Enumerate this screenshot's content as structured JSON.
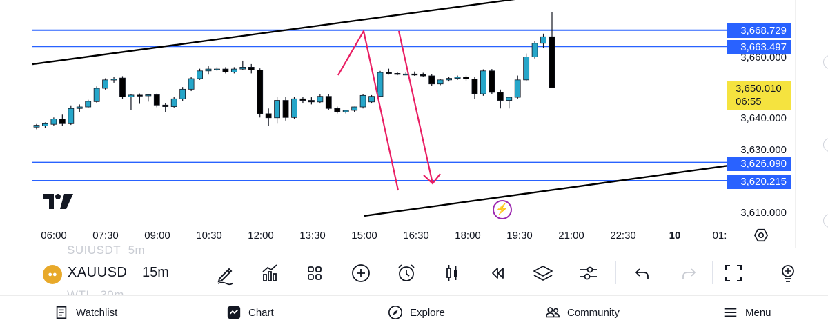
{
  "chart": {
    "symbol": "XAUUSD",
    "interval": "15m",
    "ghost_symbol_above": "SUIUSDT",
    "ghost_interval_above": "5m",
    "ghost_symbol_below": "WTI",
    "ghost_interval_below": "30m",
    "price_axis": {
      "labels": [
        "3,660.000",
        "3,640.000",
        "3,630.000",
        "3,610.000"
      ],
      "horizontal_lines": [
        {
          "price": "3,668.729"
        },
        {
          "price": "3,663.497"
        },
        {
          "price": "3,626.090"
        },
        {
          "price": "3,620.215"
        }
      ],
      "last_price": "3,650.010",
      "countdown": "06:55"
    },
    "time_axis": [
      "06:00",
      "07:30",
      "09:00",
      "10:30",
      "12:00",
      "13:30",
      "15:00",
      "16:30",
      "18:00",
      "19:30",
      "21:00",
      "22:30",
      "10",
      "01:"
    ],
    "colors": {
      "up_candle": "#26a6c9",
      "down_candle": "#000000",
      "hline": "#2962ff",
      "trendline": "#000000",
      "arrow": "#e91e63",
      "last_price_bg": "#f5e33f",
      "bolt": "#9c27b0"
    }
  },
  "chart_data": {
    "type": "candlestick",
    "interval": "15m",
    "symbol": "XAUUSD",
    "y_axis_labels": [
      3660,
      3640,
      3630,
      3610
    ],
    "candles": [
      [
        3637.5,
        3638.5,
        3636.8,
        3638.1
      ],
      [
        3637.9,
        3639.0,
        3637.2,
        3638.6
      ],
      [
        3638.4,
        3640.6,
        3637.8,
        3640.1
      ],
      [
        3640.1,
        3641.5,
        3638.0,
        3638.6
      ],
      [
        3638.6,
        3644.5,
        3638.2,
        3643.5
      ],
      [
        3643.5,
        3644.8,
        3642.4,
        3644.0
      ],
      [
        3644.0,
        3646.3,
        3643.6,
        3645.8
      ],
      [
        3645.7,
        3650.6,
        3645.3,
        3650.0
      ],
      [
        3650.0,
        3653.2,
        3649.6,
        3652.7
      ],
      [
        3652.7,
        3653.6,
        3651.8,
        3653.0
      ],
      [
        3653.3,
        3653.9,
        3646.6,
        3647.2
      ],
      [
        3647.2,
        3648.1,
        3643.0,
        3647.8
      ],
      [
        3647.8,
        3648.3,
        3645.0,
        3647.6
      ],
      [
        3647.6,
        3648.1,
        3645.7,
        3647.9
      ],
      [
        3647.9,
        3648.3,
        3643.9,
        3644.6
      ],
      [
        3644.6,
        3645.2,
        3642.3,
        3644.1
      ],
      [
        3644.1,
        3647.2,
        3643.8,
        3646.6
      ],
      [
        3646.6,
        3650.4,
        3646.0,
        3649.7
      ],
      [
        3649.7,
        3653.6,
        3649.1,
        3653.1
      ],
      [
        3653.1,
        3656.3,
        3652.7,
        3655.6
      ],
      [
        3655.6,
        3657.1,
        3654.4,
        3656.2
      ],
      [
        3656.2,
        3656.8,
        3655.6,
        3656.2
      ],
      [
        3656.2,
        3656.8,
        3654.8,
        3655.2
      ],
      [
        3655.2,
        3656.8,
        3654.8,
        3656.2
      ],
      [
        3656.2,
        3658.9,
        3655.9,
        3656.8
      ],
      [
        3656.8,
        3657.8,
        3654.8,
        3655.9
      ],
      [
        3655.9,
        3656.4,
        3640.6,
        3641.8
      ],
      [
        3641.8,
        3643.5,
        3638.0,
        3640.5
      ],
      [
        3640.5,
        3647.2,
        3638.6,
        3646.1
      ],
      [
        3646.1,
        3647.3,
        3639.6,
        3640.6
      ],
      [
        3640.6,
        3647.3,
        3640.2,
        3646.6
      ],
      [
        3646.6,
        3647.3,
        3645.1,
        3646.1
      ],
      [
        3646.1,
        3647.1,
        3644.8,
        3645.6
      ],
      [
        3645.6,
        3648.1,
        3645.1,
        3647.4
      ],
      [
        3647.4,
        3648.1,
        3643.0,
        3643.5
      ],
      [
        3643.5,
        3644.1,
        3641.9,
        3642.4
      ],
      [
        3642.4,
        3643.0,
        3641.9,
        3642.9
      ],
      [
        3642.9,
        3644.1,
        3642.4,
        3644.0
      ],
      [
        3644.0,
        3648.1,
        3643.5,
        3647.7
      ],
      [
        3645.6,
        3647.8,
        3645.1,
        3647.4
      ],
      [
        3647.4,
        3655.6,
        3647.1,
        3655.1
      ],
      [
        3655.1,
        3656.3,
        3654.4,
        3654.8
      ],
      [
        3654.8,
        3655.2,
        3654.2,
        3654.6
      ],
      [
        3654.6,
        3655.2,
        3654.2,
        3654.6
      ],
      [
        3654.6,
        3655.4,
        3654.0,
        3654.4
      ],
      [
        3654.4,
        3655.0,
        3653.6,
        3654.0
      ],
      [
        3654.0,
        3654.6,
        3650.8,
        3651.4
      ],
      [
        3651.4,
        3653.0,
        3651.0,
        3652.7
      ],
      [
        3652.7,
        3653.6,
        3652.2,
        3653.2
      ],
      [
        3653.2,
        3654.1,
        3652.7,
        3653.6
      ],
      [
        3653.6,
        3654.1,
        3652.5,
        3653.0
      ],
      [
        3653.0,
        3653.6,
        3646.6,
        3648.2
      ],
      [
        3648.2,
        3656.1,
        3647.6,
        3655.6
      ],
      [
        3655.6,
        3656.2,
        3648.2,
        3648.7
      ],
      [
        3648.7,
        3649.6,
        3643.5,
        3646.1
      ],
      [
        3646.1,
        3647.2,
        3643.5,
        3647.1
      ],
      [
        3647.1,
        3654.1,
        3646.6,
        3652.7
      ],
      [
        3652.7,
        3661.2,
        3652.2,
        3660.1
      ],
      [
        3660.1,
        3665.3,
        3659.6,
        3664.5
      ],
      [
        3664.5,
        3667.6,
        3663.0,
        3666.6
      ],
      [
        3666.6,
        3674.6,
        3650.2,
        3650.2
      ]
    ],
    "horizontal_levels": [
      3668.729,
      3663.497,
      3626.09,
      3620.215
    ],
    "trendlines": [
      {
        "from": [
          "06:00",
          3658.7
        ],
        "to": [
          "19:30",
          3678.9
        ]
      },
      {
        "from": [
          "15:00",
          3608.9
        ],
        "to": [
          "22:30",
          3620.4
        ]
      }
    ],
    "last_price": 3650.01,
    "countdown": "06:55"
  },
  "toolbar": {
    "items": [
      {
        "icon": "pencil-icon"
      },
      {
        "icon": "indicators-icon"
      },
      {
        "icon": "grid-icon"
      },
      {
        "icon": "plus-circle-icon"
      },
      {
        "icon": "alarm-icon"
      },
      {
        "icon": "candles-icon"
      },
      {
        "icon": "replay-icon"
      },
      {
        "icon": "layers-icon"
      },
      {
        "icon": "settings-sliders-icon"
      },
      {
        "icon": "undo-icon"
      },
      {
        "icon": "redo-icon"
      },
      {
        "icon": "fullscreen-icon"
      },
      {
        "icon": "lightbulb-icon"
      }
    ]
  },
  "nav": {
    "watchlist": "Watchlist",
    "chart": "Chart",
    "explore": "Explore",
    "community": "Community",
    "menu": "Menu"
  }
}
